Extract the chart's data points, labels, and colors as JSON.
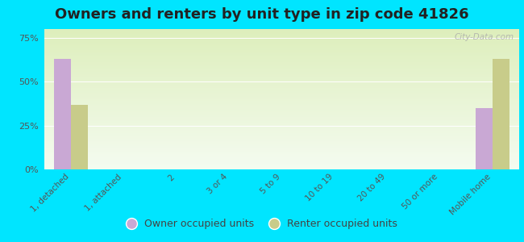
{
  "title": "Owners and renters by unit type in zip code 41826",
  "categories": [
    "1, detached",
    "1, attached",
    "2",
    "3 or 4",
    "5 to 9",
    "10 to 19",
    "20 to 49",
    "50 or more",
    "Mobile home"
  ],
  "owner_values": [
    63,
    0,
    0,
    0,
    0,
    0,
    0,
    0,
    35
  ],
  "renter_values": [
    37,
    0,
    0,
    0,
    0,
    0,
    0,
    0,
    63
  ],
  "owner_color": "#c9a8d4",
  "renter_color": "#c8cc8a",
  "background_outer": "#00e5ff",
  "background_plot_top": "#ddeebb",
  "background_plot_bottom": "#f4fbf0",
  "yticks": [
    0,
    25,
    50,
    75
  ],
  "ylim": [
    0,
    80
  ],
  "bar_width": 0.32,
  "title_fontsize": 13,
  "legend_labels": [
    "Owner occupied units",
    "Renter occupied units"
  ],
  "watermark": "City-Data.com"
}
